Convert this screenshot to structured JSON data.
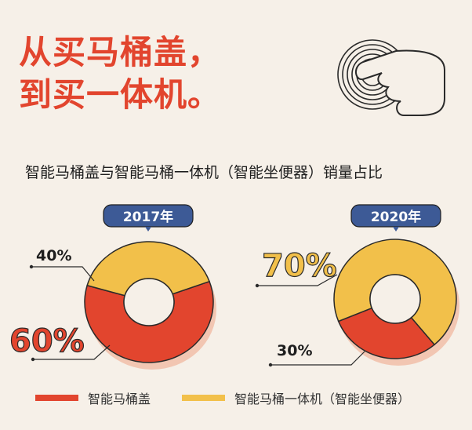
{
  "headline": {
    "line1": "从买马桶盖，",
    "line2": "到买一体机。"
  },
  "subtitle": "智能马桶盖与智能马桶一体机（智能坐便器）销量占比",
  "colors": {
    "red": "#e2452e",
    "yellow": "#f2c04a",
    "background": "#f6f0e8",
    "tag": "#3d5a96"
  },
  "chart_data": [
    {
      "type": "pie",
      "title": "2017年",
      "slices": [
        {
          "label": "智能马桶盖",
          "value": 60,
          "text": "60%"
        },
        {
          "label": "智能马桶一体机（智能坐便器）",
          "value": 40,
          "text": "40%"
        }
      ]
    },
    {
      "type": "pie",
      "title": "2020年",
      "slices": [
        {
          "label": "智能马桶盖",
          "value": 30,
          "text": "30%"
        },
        {
          "label": "智能马桶一体机（智能坐便器）",
          "value": 70,
          "text": "70%"
        }
      ]
    }
  ],
  "legend": [
    {
      "label": "智能马桶盖",
      "color": "#e2452e"
    },
    {
      "label": "智能马桶一体机（智能坐便器）",
      "color": "#f2c04a"
    }
  ],
  "icons": [
    "touch-button-icon"
  ]
}
